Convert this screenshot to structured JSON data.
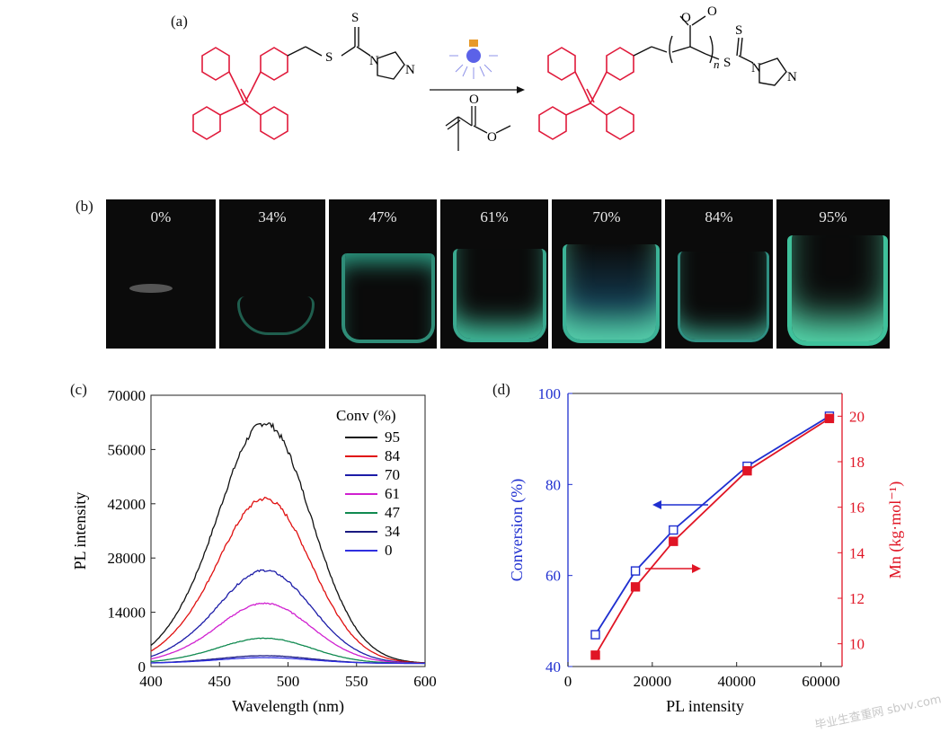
{
  "panel_labels": {
    "a": "(a)",
    "b": "(b)",
    "c": "(c)",
    "d": "(d)"
  },
  "scheme": {
    "reactant_atoms": {
      "s_thio": "S",
      "s_thione": "S",
      "n1": "N",
      "n2": "N"
    },
    "product_atoms": {
      "s_thio": "S",
      "s_thione": "S",
      "n1": "N",
      "n2": "N",
      "o1": "O",
      "o2": "O",
      "subscript": "n"
    },
    "monomer_atoms": {
      "o1": "O",
      "o2": "O"
    },
    "condition_icon": "light-bulb-icon",
    "colors": {
      "aie_core": "#e0193a",
      "bonds": "#111111"
    }
  },
  "photos": [
    {
      "label": "0%",
      "glow": 0.0
    },
    {
      "label": "34%",
      "glow": 0.25
    },
    {
      "label": "47%",
      "glow": 0.55
    },
    {
      "label": "61%",
      "glow": 0.75
    },
    {
      "label": "70%",
      "glow": 0.8
    },
    {
      "label": "84%",
      "glow": 0.7
    },
    {
      "label": "95%",
      "glow": 0.95
    }
  ],
  "chart_data": [
    {
      "type": "line",
      "xlabel": "Wavelength (nm)",
      "ylabel": "PL intensity",
      "xlim": [
        400,
        600
      ],
      "ylim": [
        0,
        70000
      ],
      "xticks": [
        400,
        450,
        500,
        550,
        600
      ],
      "yticks": [
        0,
        14000,
        28000,
        42000,
        56000,
        70000
      ],
      "legend_title": "Conv (%)",
      "legend_position": "top-right",
      "series": [
        {
          "name": "95",
          "color": "#111111",
          "peak": 62000
        },
        {
          "name": "84",
          "color": "#e01010",
          "peak": 42500
        },
        {
          "name": "70",
          "color": "#1c1ca8",
          "peak": 24000
        },
        {
          "name": "61",
          "color": "#d020d0",
          "peak": 15500
        },
        {
          "name": "47",
          "color": "#108a50",
          "peak": 6500
        },
        {
          "name": "34",
          "color": "#1a1a80",
          "peak": 2000
        },
        {
          "name": "0",
          "color": "#3030e0",
          "peak": 1500
        }
      ],
      "peak_wavelength": 483
    },
    {
      "type": "line",
      "xlabel": "PL intensity",
      "ylabel": "Conversion (%)",
      "y2label": "Mn (kg·mol⁻¹)",
      "xlim": [
        0,
        65000
      ],
      "ylim": [
        40,
        100
      ],
      "y2lim": [
        9,
        21
      ],
      "xticks": [
        0,
        20000,
        40000,
        60000
      ],
      "yticks": [
        40,
        60,
        80,
        100
      ],
      "y2ticks": [
        10,
        12,
        14,
        16,
        18,
        20
      ],
      "series": [
        {
          "name": "Conversion",
          "axis": "left",
          "color": "#1f2fd0",
          "marker": "open-square",
          "x": [
            6500,
            16000,
            25000,
            42500,
            62000
          ],
          "y": [
            47,
            61,
            70,
            84,
            95
          ]
        },
        {
          "name": "Mn",
          "axis": "right",
          "color": "#e01525",
          "marker": "filled-square",
          "x": [
            6500,
            16000,
            25000,
            42500,
            62000
          ],
          "y": [
            9.5,
            12.5,
            14.5,
            17.6,
            19.9
          ]
        }
      ]
    }
  ],
  "watermark": "毕业生查重网 sbvv.com"
}
